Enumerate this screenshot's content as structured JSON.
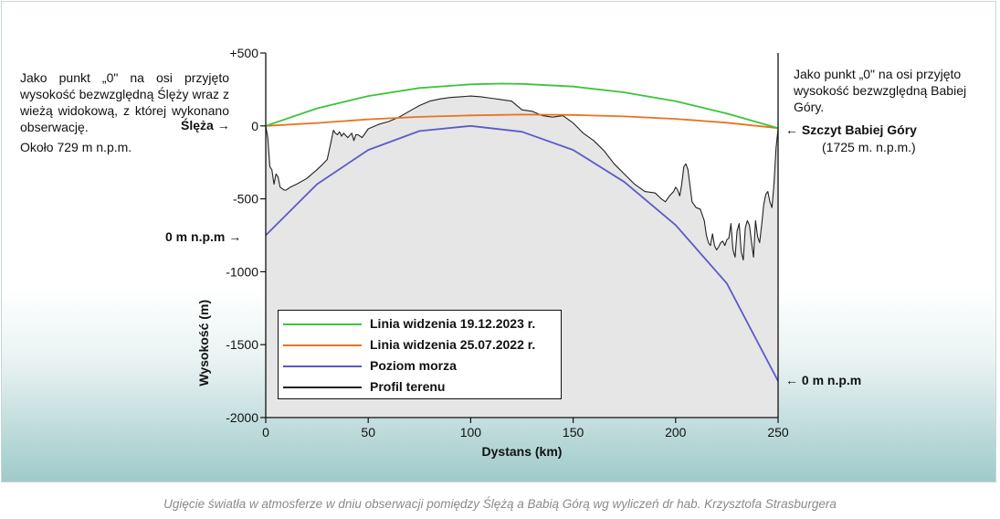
{
  "notes": {
    "left_text": "Jako punkt „0\" na osi przyjęto wysokość bezwzględną Ślęży wraz z wieżą widokową, z której wykonano obserwację.",
    "left_peak_label": "Ślęża",
    "left_altitude": "Około 729 m n.p.m.",
    "right_text": "Jako punkt „0\" na osi przyjęto wysokość bezwzględną Babiej Góry.",
    "right_peak_label": "Szczyt Babiej Góry",
    "right_altitude": "(1725 m. n.p.m.)",
    "sea_level_left": "0 m n.p.m",
    "sea_level_right": "0 m n.p.m"
  },
  "caption": "Ugięcie światła w atmosferze w dniu obserwacji pomiędzy Ślężą a Babią Górą wg wyliczeń dr hab. Krzysztofa Strasburgera",
  "chart_data": {
    "type": "line",
    "title": "",
    "xlabel": "Dystans (km)",
    "ylabel": "Wysokość (m)",
    "xlim": [
      0,
      250
    ],
    "ylim": [
      -2000,
      500
    ],
    "x_ticks": [
      0,
      50,
      100,
      150,
      200,
      250
    ],
    "x_tick_labels": [
      "0",
      "50",
      "100",
      "150",
      "200",
      "250"
    ],
    "y_ticks": [
      500,
      0,
      -500,
      -1000,
      -1500,
      -2000
    ],
    "y_tick_labels": [
      "+500",
      "0",
      "-500",
      "-1000",
      "-1500",
      "-2000"
    ],
    "grid": false,
    "legend_position": "bottom-left",
    "series": [
      {
        "name": "Linia widzenia 19.12.2023 r.",
        "color": "#3cc43c",
        "x": [
          0,
          25,
          50,
          75,
          100,
          115,
          125,
          150,
          175,
          200,
          225,
          250
        ],
        "y": [
          0,
          120,
          205,
          260,
          285,
          290,
          288,
          270,
          230,
          170,
          85,
          -15
        ]
      },
      {
        "name": "Linia widzenia 25.07.2022 r.",
        "color": "#e8731e",
        "x": [
          0,
          25,
          50,
          75,
          100,
          125,
          150,
          175,
          200,
          225,
          250
        ],
        "y": [
          0,
          20,
          45,
          62,
          72,
          78,
          75,
          65,
          48,
          22,
          -15
        ]
      },
      {
        "name": "Poziom morza",
        "color": "#5b5bc8",
        "x": [
          0,
          25,
          50,
          75,
          100,
          125,
          150,
          175,
          200,
          225,
          250
        ],
        "y": [
          -750,
          -400,
          -165,
          -35,
          0,
          -40,
          -165,
          -385,
          -680,
          -1080,
          -1750
        ]
      },
      {
        "name": "Profil terenu",
        "color": "#222222",
        "x": [
          0,
          1,
          2,
          3,
          4,
          5,
          6,
          7,
          8,
          9,
          10,
          12,
          15,
          20,
          25,
          28,
          30,
          32,
          33,
          34,
          35,
          36,
          37,
          38,
          40,
          42,
          43,
          44,
          45,
          47,
          50,
          55,
          60,
          65,
          70,
          75,
          80,
          85,
          90,
          95,
          100,
          105,
          110,
          115,
          120,
          125,
          130,
          135,
          140,
          145,
          150,
          155,
          160,
          165,
          170,
          175,
          180,
          185,
          190,
          193,
          195,
          197,
          199,
          200,
          201,
          202,
          203,
          204,
          205,
          206,
          208,
          210,
          212,
          214,
          215,
          216,
          217,
          218,
          219,
          220,
          221,
          222,
          223,
          224,
          225,
          226,
          227,
          228,
          229,
          230,
          231,
          232,
          233,
          234,
          235,
          236,
          237,
          238,
          239,
          240,
          241,
          242,
          243,
          244,
          245,
          246,
          247,
          248,
          249,
          250
        ],
        "y": [
          0,
          -80,
          -280,
          -300,
          -400,
          -330,
          -350,
          -420,
          -430,
          -440,
          -440,
          -420,
          -400,
          -360,
          -300,
          -260,
          -230,
          -100,
          -30,
          -50,
          -60,
          -40,
          -70,
          -50,
          -80,
          -50,
          -100,
          -60,
          -60,
          -80,
          -20,
          10,
          30,
          60,
          100,
          140,
          170,
          185,
          195,
          200,
          205,
          200,
          190,
          180,
          170,
          110,
          100,
          70,
          60,
          70,
          20,
          -50,
          -100,
          -170,
          -260,
          -330,
          -400,
          -450,
          -460,
          -500,
          -520,
          -480,
          -450,
          -420,
          -440,
          -480,
          -400,
          -280,
          -260,
          -300,
          -520,
          -560,
          -570,
          -650,
          -750,
          -800,
          -820,
          -740,
          -820,
          -850,
          -830,
          -800,
          -790,
          -820,
          -780,
          -770,
          -670,
          -850,
          -900,
          -720,
          -670,
          -860,
          -920,
          -700,
          -650,
          -680,
          -790,
          -900,
          -650,
          -760,
          -800,
          -680,
          -540,
          -470,
          -450,
          -520,
          -560,
          -400,
          -150,
          -20
        ]
      }
    ]
  }
}
